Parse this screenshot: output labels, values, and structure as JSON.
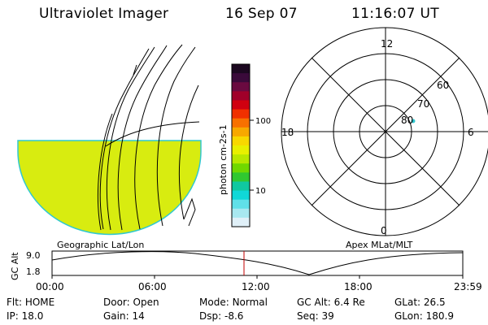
{
  "header": {
    "instrument": "Ultraviolet Imager",
    "date": "16 Sep 07",
    "time": "11:16:07 UT"
  },
  "colorbar": {
    "unit_label": "photon cm-2s-1",
    "ticks": [
      "100",
      "10"
    ],
    "colors": [
      "#1c0820",
      "#3a0a3a",
      "#6a0a40",
      "#a0002a",
      "#d00010",
      "#f03000",
      "#f87000",
      "#f8a800",
      "#f8d800",
      "#e8f000",
      "#b8e800",
      "#70d800",
      "#30c830",
      "#10c8a0",
      "#10d8d8",
      "#60e0e8",
      "#a8e8f0",
      "#e0f0f8"
    ]
  },
  "geo_panel": {
    "label": "Geographic Lat/Lon",
    "fill_color": "#d8ec10"
  },
  "polar_panel": {
    "label": "Apex MLat/MLT",
    "mlt_labels": [
      "12",
      "18",
      "6",
      "0"
    ],
    "mlat_labels": [
      "60",
      "70",
      "80"
    ]
  },
  "altitude_plot": {
    "ylabel": "GC Alt",
    "y_ticks": [
      "9.0",
      "1.8"
    ],
    "x_ticks": [
      "00:00",
      "06:00",
      "12:00",
      "18:00",
      "23:59"
    ],
    "marker_color": "#c00000"
  },
  "status": {
    "row1": [
      {
        "label": "Flt:",
        "value": "HOME"
      },
      {
        "label": "Door:",
        "value": "Open"
      },
      {
        "label": "Mode:",
        "value": "Normal"
      },
      {
        "label": "GC Alt:",
        "value": "6.4 Re"
      },
      {
        "label": "GLat:",
        "value": "26.5"
      }
    ],
    "row2": [
      {
        "label": "IP:",
        "value": "18.0"
      },
      {
        "label": "Gain:",
        "value": "14"
      },
      {
        "label": "Dsp:",
        "value": "-8.6"
      },
      {
        "label": "Seq:",
        "value": "39"
      },
      {
        "label": "GLon:",
        "value": "180.9"
      }
    ]
  }
}
